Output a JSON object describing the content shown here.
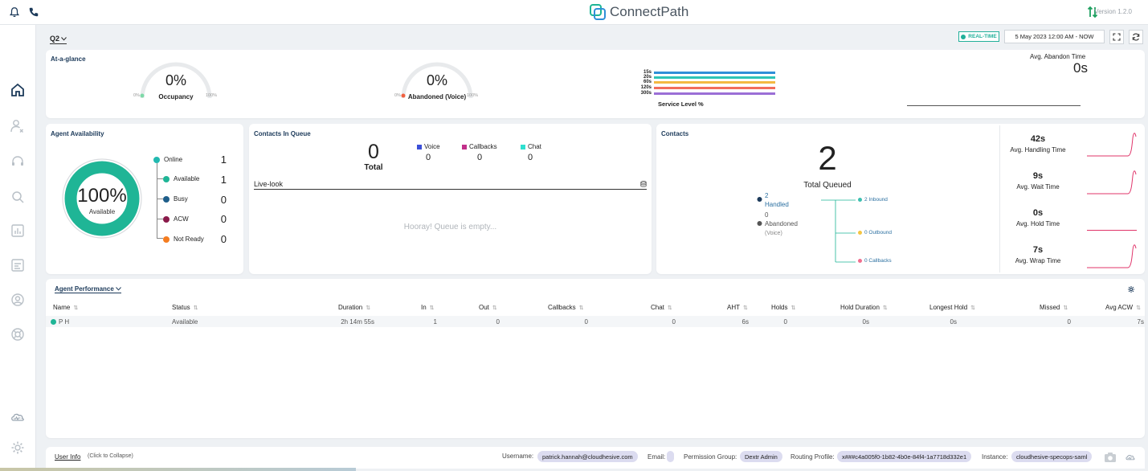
{
  "header": {
    "brand": "ConnectPath",
    "version": "Version 1.2.0"
  },
  "toolbar": {
    "queue": "Q2",
    "realtime": "REAL-TIME",
    "date_range": "5 May 2023 12:00 AM - NOW"
  },
  "at_a_glance": {
    "title": "At-a-glance",
    "occupancy": {
      "value": "0%",
      "label": "Occupancy",
      "min": "0%",
      "max": "100%"
    },
    "abandoned": {
      "value": "0%",
      "label": "Abandoned (Voice)",
      "min": "0%",
      "max": "100%"
    },
    "service_level": {
      "title": "Service Level %",
      "rows": [
        {
          "label": "15s",
          "color": "#2f8fd8"
        },
        {
          "label": "20s",
          "color": "#2ec4b6"
        },
        {
          "label": "60s",
          "color": "#f4b942"
        },
        {
          "label": "120s",
          "color": "#f26d5b"
        },
        {
          "label": "300s",
          "color": "#9b6fd6"
        }
      ]
    },
    "avg_abandon": {
      "label": "Avg. Abandon Time",
      "value": "0s"
    }
  },
  "agent_availability": {
    "title": "Agent Availability",
    "percent": "100%",
    "sub": "Available",
    "ring_color": "#1fb596",
    "online": {
      "label": "Online",
      "count": "1",
      "color": "#22b9b0"
    },
    "states": [
      {
        "label": "Available",
        "count": "1",
        "color": "#1fb596"
      },
      {
        "label": "Busy",
        "count": "0",
        "color": "#1e5e8a"
      },
      {
        "label": "ACW",
        "count": "0",
        "color": "#8a1a4a"
      },
      {
        "label": "Not Ready",
        "count": "0",
        "color": "#f47c20"
      }
    ]
  },
  "contacts_in_queue": {
    "title": "Contacts In Queue",
    "total": "0",
    "total_label": "Total",
    "legend": [
      {
        "label": "Voice",
        "count": "0",
        "color": "#3b4fd8"
      },
      {
        "label": "Callbacks",
        "count": "0",
        "color": "#c2308a"
      },
      {
        "label": "Chat",
        "count": "0",
        "color": "#2ee0d0"
      }
    ],
    "live_look": "Live-look",
    "empty": "Hooray! Queue is empty..."
  },
  "contacts": {
    "title": "Contacts",
    "total": "2",
    "total_label": "Total Queued",
    "handled_count": "2",
    "handled_label": "Handled",
    "abandoned_count": "0",
    "abandoned_label": "Abandoned",
    "abandoned_sub": "(Voice)",
    "inbound": "2 Inbound",
    "outbound": "0 Outbound",
    "callbacks": "0 Callbacks",
    "metrics": [
      {
        "value": "42s",
        "label": "Avg. Handling Time"
      },
      {
        "value": "9s",
        "label": "Avg. Wait Time"
      },
      {
        "value": "0s",
        "label": "Avg. Hold Time"
      },
      {
        "value": "7s",
        "label": "Avg. Wrap Time"
      }
    ]
  },
  "agent_performance": {
    "title": "Agent Performance",
    "columns": [
      "Name",
      "Status",
      "Duration",
      "In",
      "Out",
      "Callbacks",
      "Chat",
      "AHT",
      "Holds",
      "Hold Duration",
      "Longest Hold",
      "Missed",
      "Avg ACW"
    ],
    "rows": [
      [
        "P H",
        "Available",
        "2h 14m 55s",
        "1",
        "0",
        "0",
        "0",
        "6s",
        "0",
        "0s",
        "0s",
        "0",
        "7s"
      ]
    ]
  },
  "footer": {
    "user_info": "User Info",
    "collapse": "(Click to Collapse)",
    "username_label": "Username:",
    "username": "patrick.hannah@cloudhesive.com",
    "email_label": "Email:",
    "email": "",
    "permission_label": "Permission Group:",
    "permission": "Dextr Admin",
    "routing_label": "Routing Profile:",
    "routing": "x###c4a005f0-1b82-4b0e-84f4-1a7718d332e1",
    "instance_label": "Instance:",
    "instance": "cloudhesive-specops-saml"
  }
}
